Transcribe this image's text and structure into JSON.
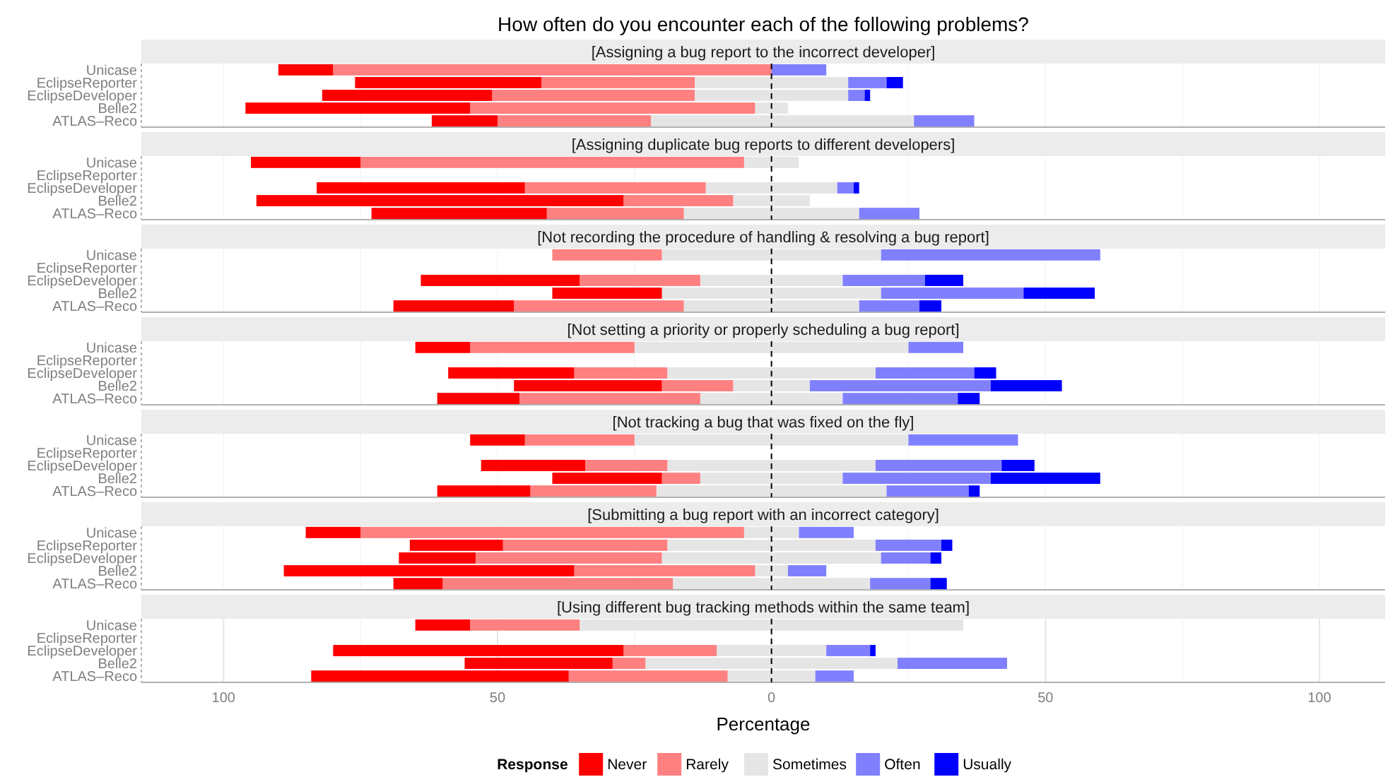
{
  "chart_data": [
    {
      "type": "bar",
      "orientation": "horizontal",
      "stacked": true,
      "title": "How often do you encounter each of the following problems?",
      "subtitle": "[Assigning a bug report to the incorrect developer]",
      "categories": [
        "Unicase",
        "EclipseReporter",
        "EclipseDeveloper",
        "Belle2",
        "ATLAS–Reco"
      ],
      "series": [
        {
          "color": "#e5e5e5",
          "values": [
            0,
            -14,
            -14,
            -3,
            -22
          ]
        },
        {
          "color": "#e5e5e5",
          "values": [
            0,
            14,
            14,
            3,
            26
          ]
        },
        {
          "color": "#ff8080",
          "values": [
            -80,
            -28,
            -37,
            -52,
            -28
          ]
        },
        {
          "color": "#8080ff",
          "values": [
            10,
            7,
            3,
            0,
            11
          ]
        },
        {
          "color": "#ff0000",
          "values": [
            -10,
            -34,
            -31,
            -41,
            -12
          ]
        },
        {
          "color": "#0000ff",
          "values": [
            0,
            3,
            1,
            0,
            0
          ]
        }
      ],
      "xlim": [
        -115,
        112
      ],
      "xticks": [
        {
          "value": -100,
          "label": null
        },
        {
          "value": -75,
          "label": null
        },
        {
          "value": -50,
          "label": null
        },
        {
          "value": -25,
          "label": null
        },
        {
          "value": 0,
          "label": null
        },
        {
          "value": 25,
          "label": null
        },
        {
          "value": 50,
          "label": null
        },
        {
          "value": 75,
          "label": null
        },
        {
          "value": 100,
          "label": null
        }
      ],
      "grid": "x",
      "tick_labels": "y",
      "ref_lines": [
        {
          "axis": "x",
          "value": 0,
          "color": "#000000",
          "line_style": "dashed"
        }
      ]
    },
    {
      "type": "bar",
      "orientation": "horizontal",
      "stacked": true,
      "subtitle": "[Assigning duplicate bug reports to different developers]",
      "categories": [
        "Unicase",
        "EclipseReporter",
        "EclipseDeveloper",
        "Belle2",
        "ATLAS–Reco"
      ],
      "series": [
        {
          "color": "#e5e5e5",
          "values": [
            -5,
            null,
            -12,
            -7,
            -16
          ]
        },
        {
          "color": "#e5e5e5",
          "values": [
            5,
            null,
            12,
            7,
            16
          ]
        },
        {
          "color": "#ff8080",
          "values": [
            -70,
            null,
            -33,
            -20,
            -25
          ]
        },
        {
          "color": "#8080ff",
          "values": [
            0,
            null,
            3,
            0,
            11
          ]
        },
        {
          "color": "#ff0000",
          "values": [
            -20,
            null,
            -38,
            -67,
            -32
          ]
        },
        {
          "color": "#0000ff",
          "values": [
            0,
            null,
            1,
            0,
            0
          ]
        }
      ],
      "xlim": [
        -115,
        112
      ],
      "xticks": [
        {
          "value": -100,
          "label": null
        },
        {
          "value": -75,
          "label": null
        },
        {
          "value": -50,
          "label": null
        },
        {
          "value": -25,
          "label": null
        },
        {
          "value": 0,
          "label": null
        },
        {
          "value": 25,
          "label": null
        },
        {
          "value": 50,
          "label": null
        },
        {
          "value": 75,
          "label": null
        },
        {
          "value": 100,
          "label": null
        }
      ],
      "grid": "x",
      "tick_labels": "y",
      "ref_lines": [
        {
          "axis": "x",
          "value": 0,
          "color": "#000000",
          "line_style": "dashed"
        }
      ]
    },
    {
      "type": "bar",
      "orientation": "horizontal",
      "stacked": true,
      "subtitle": "[Not recording the procedure of handling & resolving a bug report]",
      "categories": [
        "Unicase",
        "EclipseReporter",
        "EclipseDeveloper",
        "Belle2",
        "ATLAS–Reco"
      ],
      "series": [
        {
          "color": "#e5e5e5",
          "values": [
            -20,
            null,
            -13,
            -20,
            -16
          ]
        },
        {
          "color": "#e5e5e5",
          "values": [
            20,
            null,
            13,
            20,
            16
          ]
        },
        {
          "color": "#ff8080",
          "values": [
            -20,
            null,
            -22,
            0,
            -31
          ]
        },
        {
          "color": "#8080ff",
          "values": [
            40,
            null,
            15,
            26,
            11
          ]
        },
        {
          "color": "#ff0000",
          "values": [
            0,
            null,
            -29,
            -20,
            -22
          ]
        },
        {
          "color": "#0000ff",
          "values": [
            0,
            null,
            7,
            13,
            4
          ]
        }
      ],
      "xlim": [
        -115,
        112
      ],
      "xticks": [
        {
          "value": -100,
          "label": null
        },
        {
          "value": -75,
          "label": null
        },
        {
          "value": -50,
          "label": null
        },
        {
          "value": -25,
          "label": null
        },
        {
          "value": 0,
          "label": null
        },
        {
          "value": 25,
          "label": null
        },
        {
          "value": 50,
          "label": null
        },
        {
          "value": 75,
          "label": null
        },
        {
          "value": 100,
          "label": null
        }
      ],
      "grid": "x",
      "tick_labels": "y",
      "ref_lines": [
        {
          "axis": "x",
          "value": 0,
          "color": "#000000",
          "line_style": "dashed"
        }
      ]
    },
    {
      "type": "bar",
      "orientation": "horizontal",
      "stacked": true,
      "subtitle": "[Not setting a priority or properly scheduling a bug report]",
      "categories": [
        "Unicase",
        "EclipseReporter",
        "EclipseDeveloper",
        "Belle2",
        "ATLAS–Reco"
      ],
      "series": [
        {
          "color": "#e5e5e5",
          "values": [
            -25,
            null,
            -19,
            -7,
            -13
          ]
        },
        {
          "color": "#e5e5e5",
          "values": [
            25,
            null,
            19,
            7,
            13
          ]
        },
        {
          "color": "#ff8080",
          "values": [
            -30,
            null,
            -17,
            -13,
            -33
          ]
        },
        {
          "color": "#8080ff",
          "values": [
            10,
            null,
            18,
            33,
            21
          ]
        },
        {
          "color": "#ff0000",
          "values": [
            -10,
            null,
            -23,
            -27,
            -15
          ]
        },
        {
          "color": "#0000ff",
          "values": [
            0,
            null,
            4,
            13,
            4
          ]
        }
      ],
      "xlim": [
        -115,
        112
      ],
      "xticks": [
        {
          "value": -100,
          "label": null
        },
        {
          "value": -75,
          "label": null
        },
        {
          "value": -50,
          "label": null
        },
        {
          "value": -25,
          "label": null
        },
        {
          "value": 0,
          "label": null
        },
        {
          "value": 25,
          "label": null
        },
        {
          "value": 50,
          "label": null
        },
        {
          "value": 75,
          "label": null
        },
        {
          "value": 100,
          "label": null
        }
      ],
      "grid": "x",
      "tick_labels": "y",
      "ref_lines": [
        {
          "axis": "x",
          "value": 0,
          "color": "#000000",
          "line_style": "dashed"
        }
      ]
    },
    {
      "type": "bar",
      "orientation": "horizontal",
      "stacked": true,
      "subtitle": "[Not tracking a bug that was fixed on the fly]",
      "categories": [
        "Unicase",
        "EclipseReporter",
        "EclipseDeveloper",
        "Belle2",
        "ATLAS–Reco"
      ],
      "series": [
        {
          "color": "#e5e5e5",
          "values": [
            -25,
            null,
            -19,
            -13,
            -21
          ]
        },
        {
          "color": "#e5e5e5",
          "values": [
            25,
            null,
            19,
            13,
            21
          ]
        },
        {
          "color": "#ff8080",
          "values": [
            -20,
            null,
            -15,
            -7,
            -23
          ]
        },
        {
          "color": "#8080ff",
          "values": [
            20,
            null,
            23,
            27,
            15
          ]
        },
        {
          "color": "#ff0000",
          "values": [
            -10,
            null,
            -19,
            -20,
            -17
          ]
        },
        {
          "color": "#0000ff",
          "values": [
            0,
            null,
            6,
            20,
            2
          ]
        }
      ],
      "xlim": [
        -115,
        112
      ],
      "xticks": [
        {
          "value": -100,
          "label": null
        },
        {
          "value": -75,
          "label": null
        },
        {
          "value": -50,
          "label": null
        },
        {
          "value": -25,
          "label": null
        },
        {
          "value": 0,
          "label": null
        },
        {
          "value": 25,
          "label": null
        },
        {
          "value": 50,
          "label": null
        },
        {
          "value": 75,
          "label": null
        },
        {
          "value": 100,
          "label": null
        }
      ],
      "grid": "x",
      "tick_labels": "y",
      "ref_lines": [
        {
          "axis": "x",
          "value": 0,
          "color": "#000000",
          "line_style": "dashed"
        }
      ]
    },
    {
      "type": "bar",
      "orientation": "horizontal",
      "stacked": true,
      "subtitle": "[Submitting a bug report with an incorrect category]",
      "categories": [
        "Unicase",
        "EclipseReporter",
        "EclipseDeveloper",
        "Belle2",
        "ATLAS–Reco"
      ],
      "series": [
        {
          "color": "#e5e5e5",
          "values": [
            -5,
            -19,
            -20,
            -3,
            -18
          ]
        },
        {
          "color": "#e5e5e5",
          "values": [
            5,
            19,
            20,
            3,
            18
          ]
        },
        {
          "color": "#ff8080",
          "values": [
            -70,
            -30,
            -34,
            -33,
            -42
          ]
        },
        {
          "color": "#8080ff",
          "values": [
            10,
            12,
            9,
            7,
            11
          ]
        },
        {
          "color": "#ff0000",
          "values": [
            -10,
            -17,
            -14,
            -53,
            -9
          ]
        },
        {
          "color": "#0000ff",
          "values": [
            0,
            2,
            2,
            0,
            3
          ]
        }
      ],
      "xlim": [
        -115,
        112
      ],
      "xticks": [
        {
          "value": -100,
          "label": null
        },
        {
          "value": -75,
          "label": null
        },
        {
          "value": -50,
          "label": null
        },
        {
          "value": -25,
          "label": null
        },
        {
          "value": 0,
          "label": null
        },
        {
          "value": 25,
          "label": null
        },
        {
          "value": 50,
          "label": null
        },
        {
          "value": 75,
          "label": null
        },
        {
          "value": 100,
          "label": null
        }
      ],
      "grid": "x",
      "tick_labels": "y",
      "ref_lines": [
        {
          "axis": "x",
          "value": 0,
          "color": "#000000",
          "line_style": "dashed"
        }
      ]
    },
    {
      "type": "bar",
      "orientation": "horizontal",
      "stacked": true,
      "subtitle": "[Using different bug tracking methods within the same team]",
      "xlabel": "Percentage",
      "legend_title": "Response",
      "legend": "bottom",
      "categories": [
        "Unicase",
        "EclipseReporter",
        "EclipseDeveloper",
        "Belle2",
        "ATLAS–Reco"
      ],
      "series": [
        {
          "color": "#e5e5e5",
          "values": [
            -35,
            null,
            -10,
            -23,
            -8
          ]
        },
        {
          "name": "Sometimes",
          "color": "#e5e5e5",
          "values": [
            35,
            null,
            10,
            23,
            8
          ]
        },
        {
          "name": "Rarely",
          "color": "#ff8080",
          "values": [
            -20,
            null,
            -17,
            -6,
            -29
          ]
        },
        {
          "name": "Often",
          "color": "#8080ff",
          "values": [
            0,
            null,
            8,
            20,
            7
          ]
        },
        {
          "name": "Never",
          "color": "#ff0000",
          "values": [
            -10,
            null,
            -53,
            -27,
            -47
          ]
        },
        {
          "name": "Usually",
          "color": "#0000ff",
          "values": [
            0,
            null,
            1,
            0,
            0
          ]
        }
      ],
      "xlim": [
        -115,
        112
      ],
      "xticks": [
        {
          "value": -100,
          "label": "100"
        },
        {
          "value": -75,
          "label": null
        },
        {
          "value": -50,
          "label": "50"
        },
        {
          "value": -25,
          "label": null
        },
        0,
        {
          "value": 25,
          "label": null
        },
        50,
        {
          "value": 75,
          "label": null
        },
        100
      ],
      "grid": "x",
      "ref_lines": [
        {
          "axis": "x",
          "value": 0,
          "color": "#000000",
          "line_style": "dashed"
        }
      ]
    }
  ]
}
